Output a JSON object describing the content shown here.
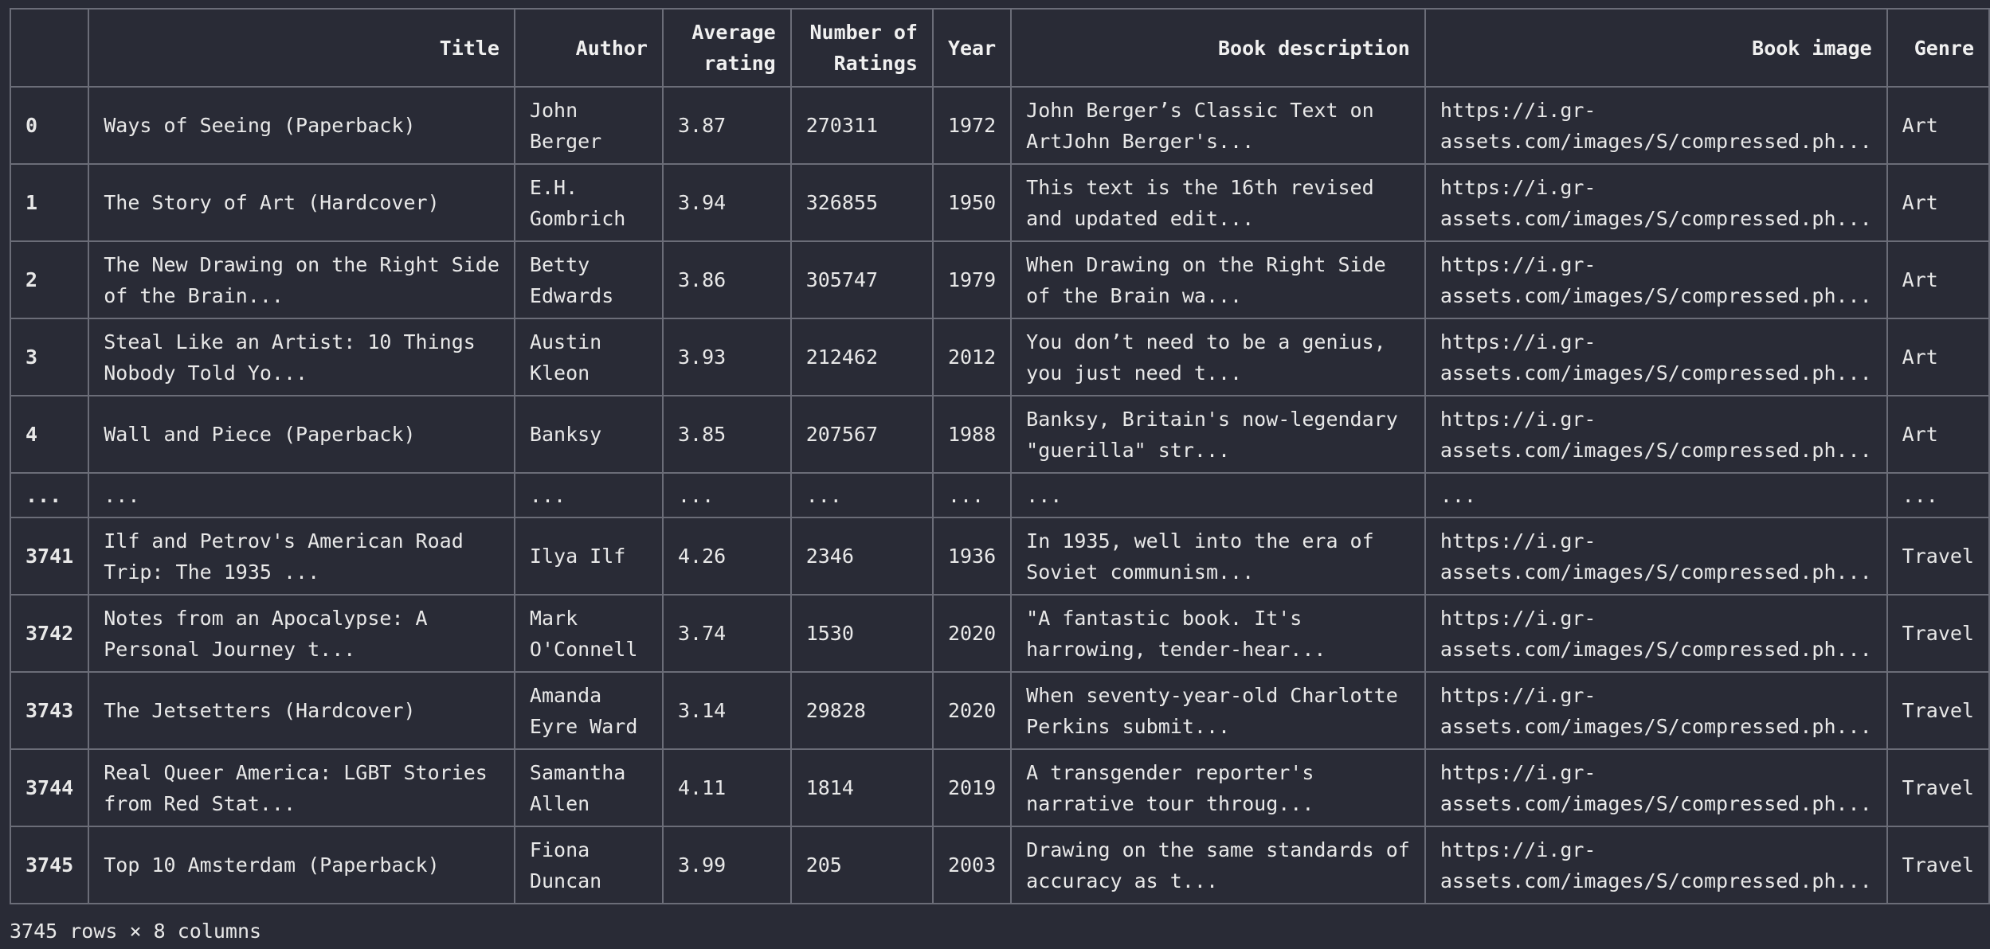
{
  "table": {
    "headers": [
      "",
      "Title",
      "Author",
      "Average rating",
      "Number of Ratings",
      "Year",
      "Book description",
      "Book image",
      "Genre"
    ],
    "rows": [
      {
        "idx": "0",
        "title_l1": "Ways of Seeing (Paperback)",
        "title_l2": "",
        "author_l1": "John",
        "author_l2": "Berger",
        "rating": "3.87",
        "num": "270311",
        "year": "1972",
        "desc_l1": "John Berger’s Classic Text on",
        "desc_l2": "ArtJohn Berger's...",
        "img_l1": "https://i.gr-",
        "img_l2": "assets.com/images/S/compressed.ph...",
        "genre": "Art"
      },
      {
        "idx": "1",
        "title_l1": "The Story of Art (Hardcover)",
        "title_l2": "",
        "author_l1": "E.H.",
        "author_l2": "Gombrich",
        "rating": "3.94",
        "num": "326855",
        "year": "1950",
        "desc_l1": "This text is the 16th revised",
        "desc_l2": "and updated edit...",
        "img_l1": "https://i.gr-",
        "img_l2": "assets.com/images/S/compressed.ph...",
        "genre": "Art"
      },
      {
        "idx": "2",
        "title_l1": "The New Drawing on the Right Side",
        "title_l2": "of the Brain...",
        "author_l1": "Betty",
        "author_l2": "Edwards",
        "rating": "3.86",
        "num": "305747",
        "year": "1979",
        "desc_l1": "When Drawing on the Right Side",
        "desc_l2": "of the Brain wa...",
        "img_l1": "https://i.gr-",
        "img_l2": "assets.com/images/S/compressed.ph...",
        "genre": "Art"
      },
      {
        "idx": "3",
        "title_l1": "Steal Like an Artist: 10 Things",
        "title_l2": "Nobody Told Yo...",
        "author_l1": "Austin",
        "author_l2": "Kleon",
        "rating": "3.93",
        "num": "212462",
        "year": "2012",
        "desc_l1": "You don’t need to be a genius,",
        "desc_l2": "you just need t...",
        "img_l1": "https://i.gr-",
        "img_l2": "assets.com/images/S/compressed.ph...",
        "genre": "Art"
      },
      {
        "idx": "4",
        "title_l1": "Wall and Piece (Paperback)",
        "title_l2": "",
        "author_l1": "Banksy",
        "author_l2": "",
        "rating": "3.85",
        "num": "207567",
        "year": "1988",
        "desc_l1": "Banksy, Britain's now-legendary",
        "desc_l2": "\"guerilla\" str...",
        "img_l1": "https://i.gr-",
        "img_l2": "assets.com/images/S/compressed.ph...",
        "genre": "Art"
      },
      {
        "ellipsis": true,
        "idx": "...",
        "title_l1": "...",
        "title_l2": "",
        "author_l1": "...",
        "author_l2": "",
        "rating": "...",
        "num": "...",
        "year": "...",
        "desc_l1": "...",
        "desc_l2": "",
        "img_l1": "...",
        "img_l2": "",
        "genre": "..."
      },
      {
        "idx": "3741",
        "title_l1": "Ilf and Petrov's American Road",
        "title_l2": "Trip: The 1935 ...",
        "author_l1": "Ilya Ilf",
        "author_l2": "",
        "rating": "4.26",
        "num": "2346",
        "year": "1936",
        "desc_l1": "In 1935, well into the era of",
        "desc_l2": "Soviet communism...",
        "img_l1": "https://i.gr-",
        "img_l2": "assets.com/images/S/compressed.ph...",
        "genre": "Travel"
      },
      {
        "idx": "3742",
        "title_l1": "Notes from an Apocalypse: A",
        "title_l2": "Personal Journey t...",
        "author_l1": "Mark",
        "author_l2": "O'Connell",
        "rating": "3.74",
        "num": "1530",
        "year": "2020",
        "desc_l1": "\"A fantastic book. It's",
        "desc_l2": "harrowing, tender-hear...",
        "img_l1": "https://i.gr-",
        "img_l2": "assets.com/images/S/compressed.ph...",
        "genre": "Travel"
      },
      {
        "idx": "3743",
        "title_l1": "The Jetsetters (Hardcover)",
        "title_l2": "",
        "author_l1": "Amanda",
        "author_l2": "Eyre Ward",
        "rating": "3.14",
        "num": "29828",
        "year": "2020",
        "desc_l1": "When seventy-year-old Charlotte",
        "desc_l2": "Perkins submit...",
        "img_l1": "https://i.gr-",
        "img_l2": "assets.com/images/S/compressed.ph...",
        "genre": "Travel"
      },
      {
        "idx": "3744",
        "title_l1": "Real Queer America: LGBT Stories",
        "title_l2": "from Red Stat...",
        "author_l1": "Samantha",
        "author_l2": "Allen",
        "rating": "4.11",
        "num": "1814",
        "year": "2019",
        "desc_l1": "A transgender reporter's",
        "desc_l2": "narrative tour throug...",
        "img_l1": "https://i.gr-",
        "img_l2": "assets.com/images/S/compressed.ph...",
        "genre": "Travel"
      },
      {
        "idx": "3745",
        "title_l1": "Top 10 Amsterdam (Paperback)",
        "title_l2": "",
        "author_l1": "Fiona",
        "author_l2": "Duncan",
        "rating": "3.99",
        "num": "205",
        "year": "2003",
        "desc_l1": "Drawing on the same standards of",
        "desc_l2": "accuracy as t...",
        "img_l1": "https://i.gr-",
        "img_l2": "assets.com/images/S/compressed.ph...",
        "genre": "Travel"
      }
    ]
  },
  "footer": {
    "shape": "3745 rows × 8 columns"
  },
  "colors": {
    "background": "#292b36",
    "border": "#6b6d78",
    "text": "#e8e8e8"
  }
}
